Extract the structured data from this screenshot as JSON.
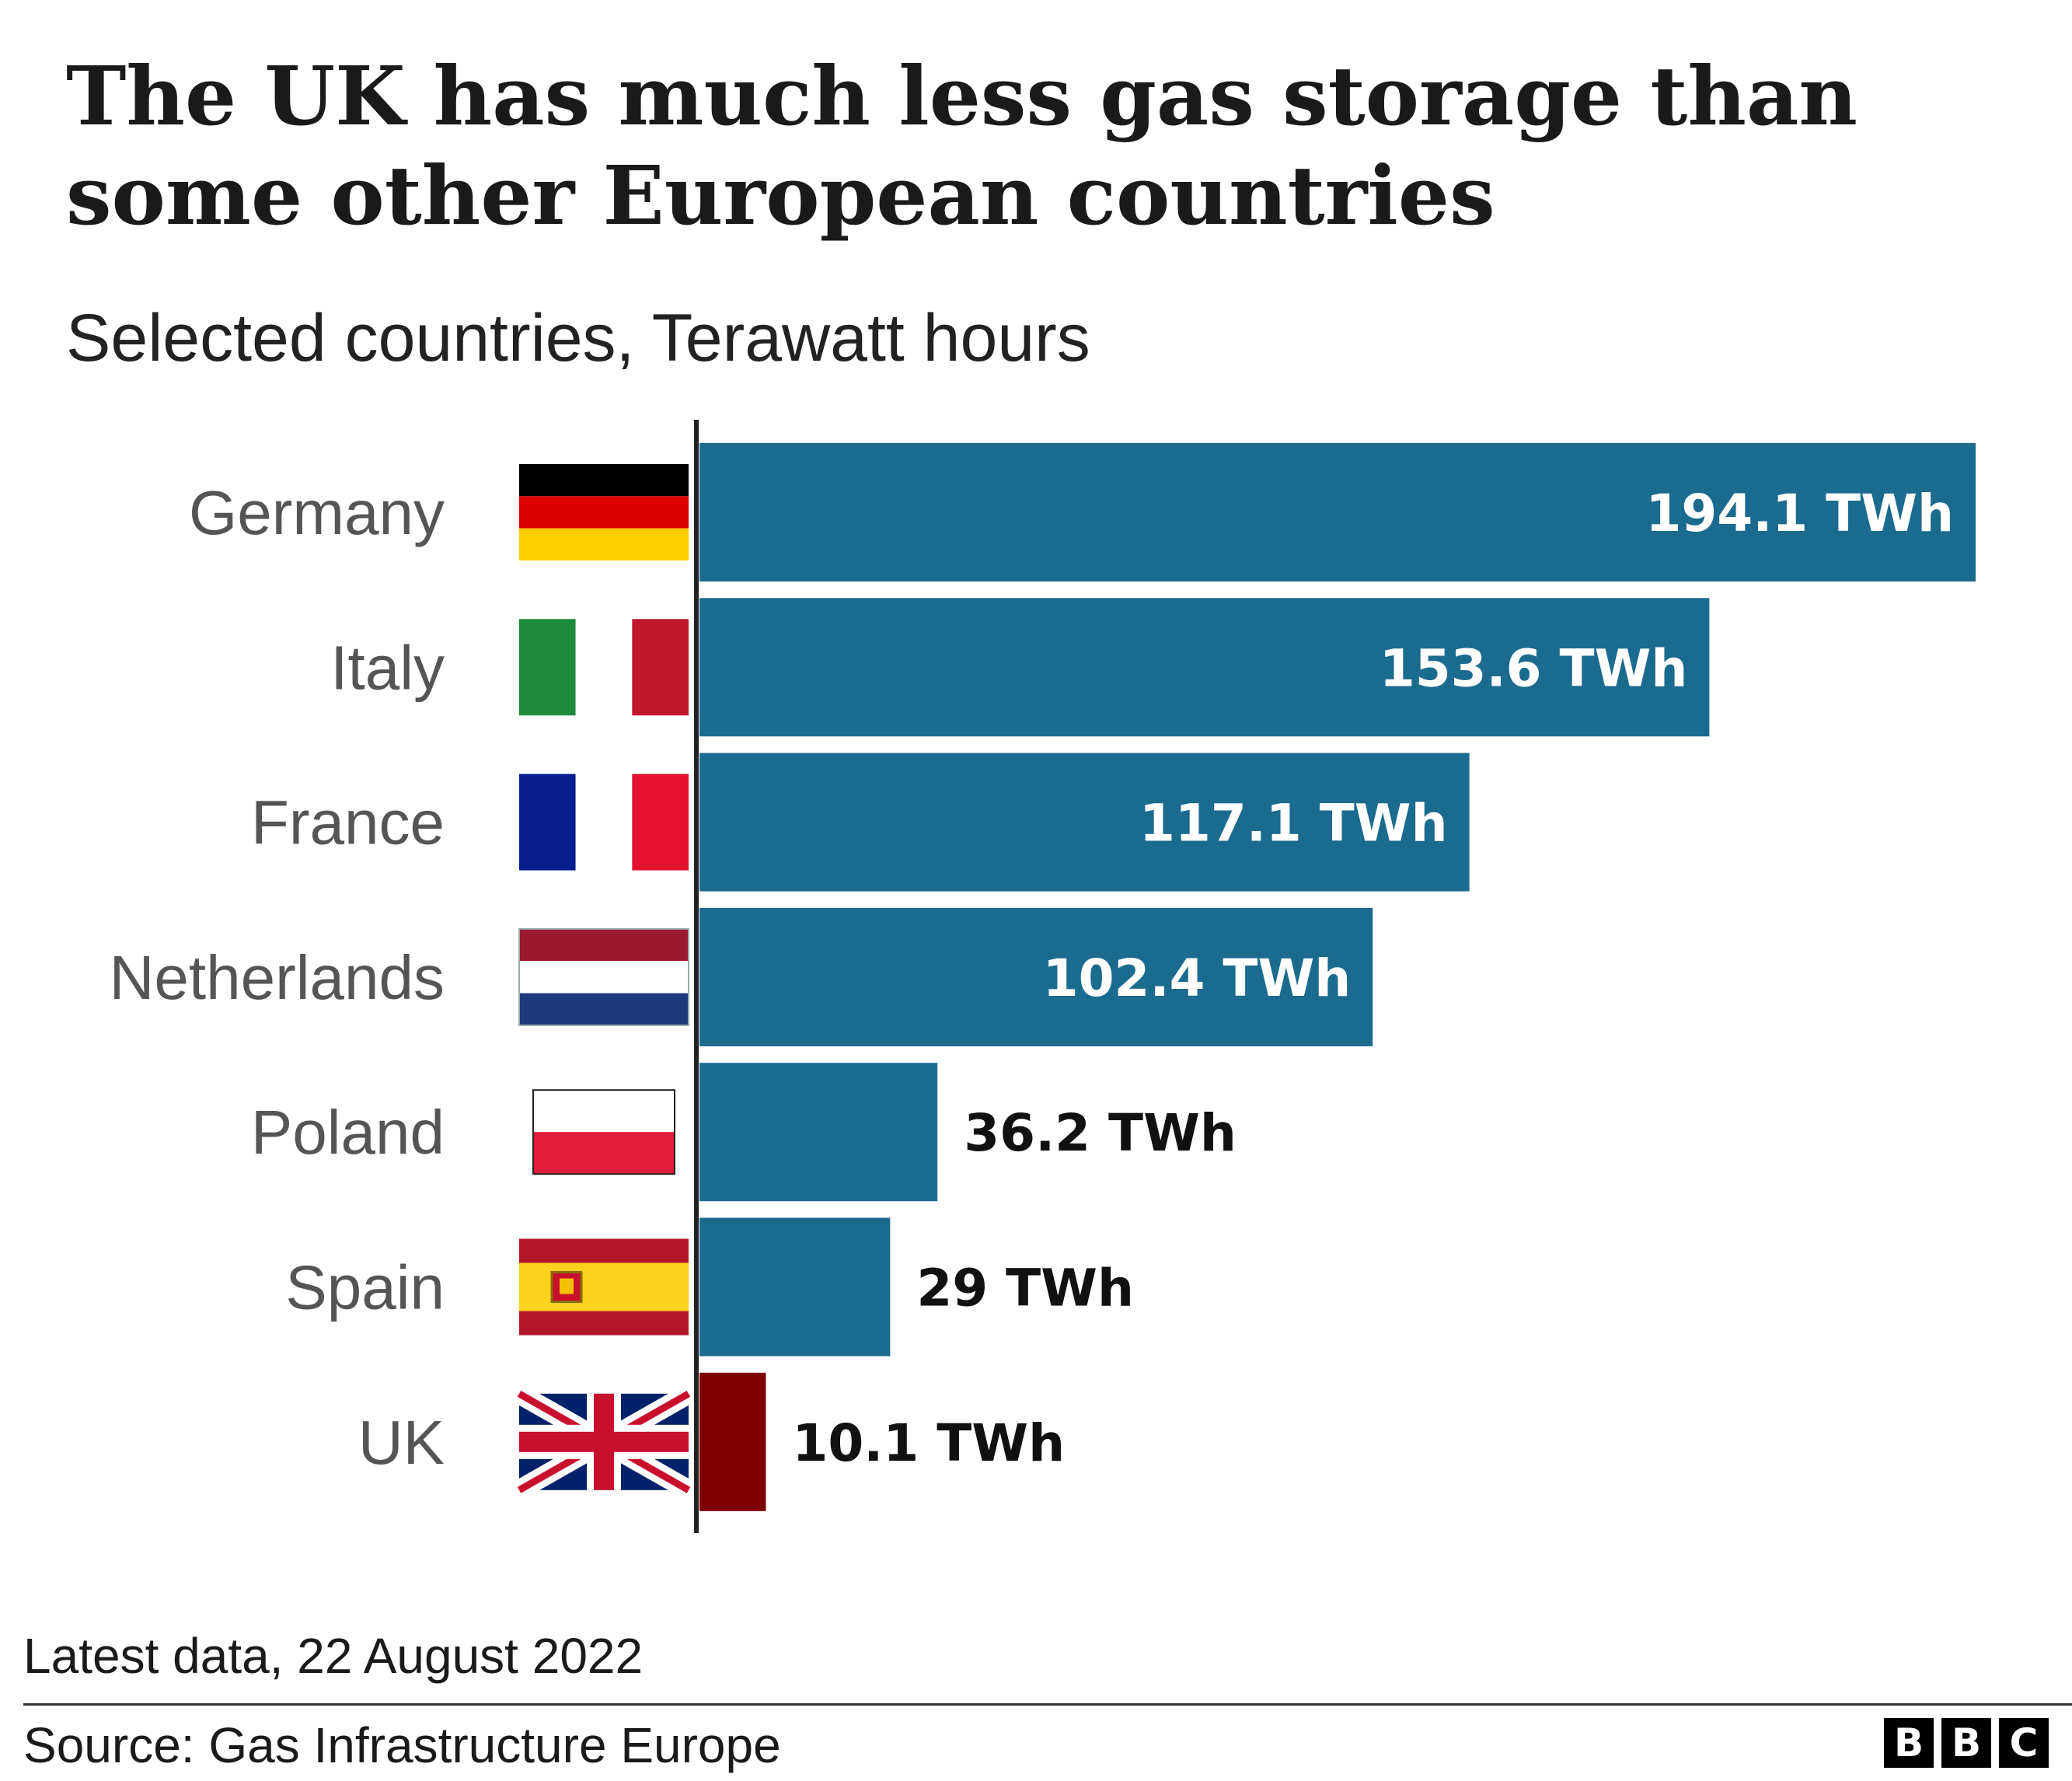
{
  "title": "The UK has much less gas storage than some other European countries",
  "subtitle": "Selected countries, Terawatt hours",
  "footer": {
    "note": "Latest data, 22 August 2022",
    "source": "Source: Gas Infrastructure Europe",
    "logo": [
      "B",
      "B",
      "C"
    ]
  },
  "colors": {
    "bar": "#1b6b8f",
    "highlight": "#7f0000",
    "axis": "#222222",
    "label": "#555555"
  },
  "chart_data": {
    "type": "bar",
    "orientation": "horizontal",
    "title": "The UK has much less gas storage than some other European countries",
    "subtitle": "Selected countries, Terawatt hours",
    "categories": [
      "Germany",
      "Italy",
      "France",
      "Netherlands",
      "Poland",
      "Spain",
      "UK"
    ],
    "values": [
      194.1,
      153.6,
      117.1,
      102.4,
      36.2,
      29,
      10.1
    ],
    "value_labels": [
      "194.1 TWh",
      "153.6 TWh",
      "117.1 TWh",
      "102.4 TWh",
      "36.2 TWh",
      "29 TWh",
      "10.1 TWh"
    ],
    "flags": [
      "germany-flag",
      "italy-flag",
      "france-flag",
      "netherlands-flag",
      "poland-flag",
      "spain-flag",
      "uk-flag"
    ],
    "highlight": "UK",
    "xlim": [
      0,
      194.1
    ],
    "grid": false,
    "legend": "none"
  }
}
